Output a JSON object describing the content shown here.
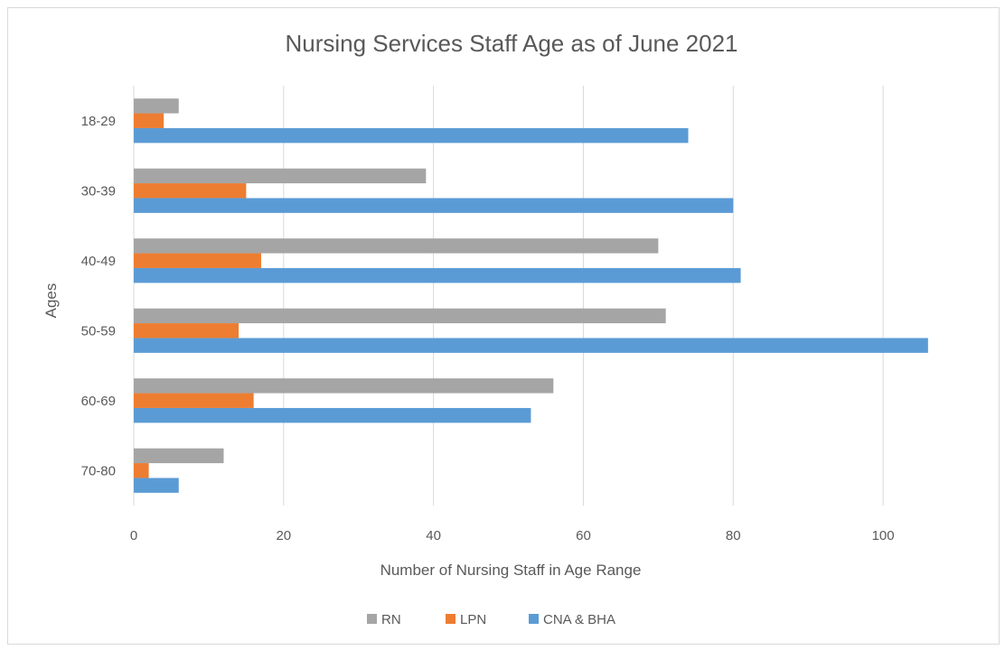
{
  "chart_data": {
    "type": "bar",
    "orientation": "horizontal",
    "title": "Nursing Services Staff Age as of June 2021",
    "xlabel": "Number of Nursing Staff in Age Range",
    "ylabel": "Ages",
    "categories": [
      "18-29",
      "30-39",
      "40-49",
      "50-59",
      "60-69",
      "70-80"
    ],
    "xlim": [
      0,
      110
    ],
    "xticks": [
      0,
      20,
      40,
      60,
      80,
      100
    ],
    "grid": true,
    "legend_position": "bottom",
    "series": [
      {
        "name": "RN",
        "color": "#a5a5a5",
        "values": [
          6,
          39,
          70,
          71,
          56,
          12
        ]
      },
      {
        "name": "LPN",
        "color": "#ed7d31",
        "values": [
          4,
          15,
          17,
          14,
          16,
          2
        ]
      },
      {
        "name": "CNA & BHA",
        "color": "#5b9bd5",
        "values": [
          74,
          80,
          81,
          106,
          53,
          6
        ]
      }
    ]
  }
}
